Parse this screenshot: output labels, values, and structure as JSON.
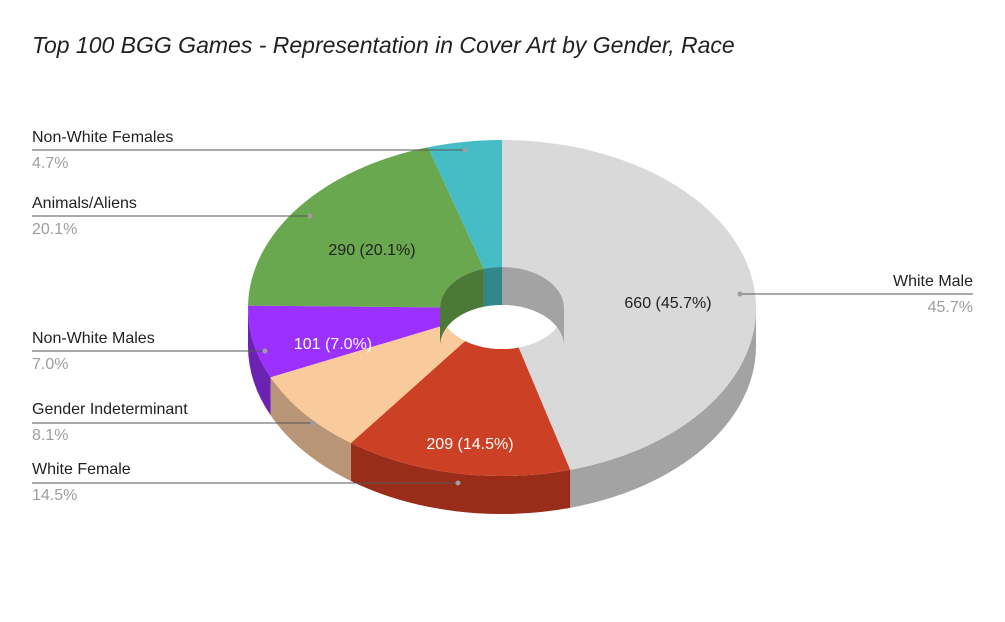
{
  "chart_data": {
    "type": "pie",
    "variant": "3d-donut",
    "title": "Top 100 BGG Games - Representation in Cover Art by Gender, Race",
    "legend": "none",
    "slices": [
      {
        "label": "White Male",
        "value": 660,
        "percent": "45.7%",
        "data_label": "660 (45.7%)",
        "color": "#d9d9d9",
        "side_color": "#a3a3a3",
        "label_color": "#212121"
      },
      {
        "label": "White Female",
        "value": 209,
        "percent": "14.5%",
        "data_label": "209 (14.5%)",
        "color": "#cc4125",
        "side_color": "#992d1a",
        "label_color": "#ffffff"
      },
      {
        "label": "Gender Indeterminant",
        "value": 117,
        "percent": "8.1%",
        "data_label": "",
        "color": "#f9cb9c",
        "side_color": "#b89577",
        "label_color": "#212121"
      },
      {
        "label": "Non-White Males",
        "value": 101,
        "percent": "7.0%",
        "data_label": "101 (7.0%)",
        "color": "#9b30ff",
        "side_color": "#6b22b3",
        "label_color": "#ffffff"
      },
      {
        "label": "Animals/Aliens",
        "value": 290,
        "percent": "20.1%",
        "data_label": "290 (20.1%)",
        "color": "#6aa84f",
        "side_color": "#4b7a37",
        "label_color": "#212121"
      },
      {
        "label": "Non-White Females",
        "value": 68,
        "percent": "4.7%",
        "data_label": "",
        "color": "#46bdc6",
        "side_color": "#32878d",
        "label_color": "#212121"
      }
    ]
  }
}
